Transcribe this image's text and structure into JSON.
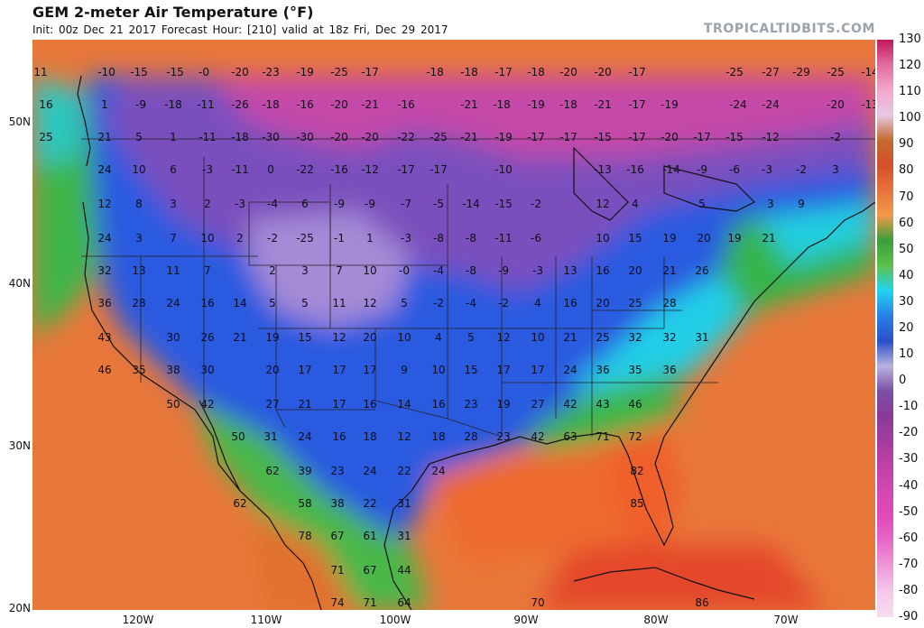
{
  "header": {
    "title": "GEM 2-meter Air Temperature (°F)",
    "subtitle": "Init: 00z Dec 21 2017   Forecast Hour: [210]   valid at 18z Fri, Dec 29 2017",
    "brand": "TROPICALTIDBITS.COM"
  },
  "axes": {
    "lat_labels": [
      "50N",
      "40N",
      "30N",
      "20N"
    ],
    "lon_labels": [
      "120W",
      "110W",
      "100W",
      "90W",
      "80W",
      "70W"
    ]
  },
  "colorbar": {
    "labels": [
      "130",
      "120",
      "110",
      "100",
      "90",
      "80",
      "70",
      "60",
      "50",
      "40",
      "30",
      "20",
      "10",
      "0",
      "-10",
      "-20",
      "-30",
      "-40",
      "-50",
      "-60",
      "-70",
      "-80",
      "-90"
    ],
    "colors": [
      "#c2185b",
      "#e16ca0",
      "#f4a6cc",
      "#e6c9e6",
      "#c46a2c",
      "#d4502a",
      "#e8733a",
      "#f09a4a",
      "#3b9e3a",
      "#5ec04a",
      "#22d4f0",
      "#2a7fe6",
      "#2a4fc8",
      "#b9b3dd",
      "#7b4fa6",
      "#8a3a96",
      "#a53c9f",
      "#c040a8",
      "#d448b4",
      "#e04ab8",
      "#e86ac8",
      "#ee9ad8",
      "#f4c8ea"
    ],
    "color_bottom": "#f7dcf0"
  },
  "map": {
    "ocean_west_warm": "#e8773a",
    "gulf_orange": "#ee6a2e",
    "atlantic_orange": "#f08a3c",
    "land_blue": "#2c5ae0",
    "cold_purple": "#7a4fbd",
    "very_cold_magenta": "#c548a8",
    "green_coast": "#3cb54a",
    "cyan": "#26cfe8"
  },
  "points": [
    {
      "t": "11"
    },
    {
      "t": "-10"
    },
    {
      "t": "-15"
    },
    {
      "t": "-15"
    },
    {
      "t": "-0"
    },
    {
      "t": "-20"
    },
    {
      "t": "-23"
    },
    {
      "t": "-19"
    },
    {
      "t": "-25"
    },
    {
      "t": "-17"
    },
    {
      "t": "-18"
    },
    {
      "t": "-18"
    },
    {
      "t": "-17"
    },
    {
      "t": "-18"
    },
    {
      "t": "-20"
    },
    {
      "t": "-20"
    },
    {
      "t": "-17"
    },
    {
      "t": "-25"
    },
    {
      "t": "-27"
    },
    {
      "t": "-29"
    },
    {
      "t": "-25"
    },
    {
      "t": "-14"
    },
    {
      "t": "16"
    },
    {
      "t": "1"
    },
    {
      "t": "-9"
    },
    {
      "t": "-18"
    },
    {
      "t": "-11"
    },
    {
      "t": "-26"
    },
    {
      "t": "-18"
    },
    {
      "t": "-16"
    },
    {
      "t": "-20"
    },
    {
      "t": "-21"
    },
    {
      "t": "-16"
    },
    {
      "t": "-21"
    },
    {
      "t": "-18"
    },
    {
      "t": "-19"
    },
    {
      "t": "-18"
    },
    {
      "t": "-21"
    },
    {
      "t": "-17"
    },
    {
      "t": "-19"
    },
    {
      "t": "-24"
    },
    {
      "t": "-24"
    },
    {
      "t": "-20"
    },
    {
      "t": "-13"
    },
    {
      "t": "25"
    },
    {
      "t": "21"
    },
    {
      "t": "5"
    },
    {
      "t": "1"
    },
    {
      "t": "-11"
    },
    {
      "t": "-18"
    },
    {
      "t": "-30"
    },
    {
      "t": "-30"
    },
    {
      "t": "-20"
    },
    {
      "t": "-20"
    },
    {
      "t": "-22"
    },
    {
      "t": "-25"
    },
    {
      "t": "-21"
    },
    {
      "t": "-19"
    },
    {
      "t": "-17"
    },
    {
      "t": "-17"
    },
    {
      "t": "-15"
    },
    {
      "t": "-17"
    },
    {
      "t": "-20"
    },
    {
      "t": "-17"
    },
    {
      "t": "-15"
    },
    {
      "t": "-12"
    },
    {
      "t": "-2"
    },
    {
      "t": "24"
    },
    {
      "t": "10"
    },
    {
      "t": "6"
    },
    {
      "t": "-3"
    },
    {
      "t": "-11"
    },
    {
      "t": "0"
    },
    {
      "t": "-22"
    },
    {
      "t": "-16"
    },
    {
      "t": "-12"
    },
    {
      "t": "-17"
    },
    {
      "t": "-17"
    },
    {
      "t": "-10"
    },
    {
      "t": "-13"
    },
    {
      "t": "-16"
    },
    {
      "t": "-14"
    },
    {
      "t": "-9"
    },
    {
      "t": "-6"
    },
    {
      "t": "-3"
    },
    {
      "t": "-2"
    },
    {
      "t": "3"
    },
    {
      "t": "12"
    },
    {
      "t": "8"
    },
    {
      "t": "3"
    },
    {
      "t": "2"
    },
    {
      "t": "-3"
    },
    {
      "t": "-4"
    },
    {
      "t": "6"
    },
    {
      "t": "-9"
    },
    {
      "t": "-9"
    },
    {
      "t": "-7"
    },
    {
      "t": "-5"
    },
    {
      "t": "-14"
    },
    {
      "t": "-15"
    },
    {
      "t": "-2"
    },
    {
      "t": "12"
    },
    {
      "t": "4"
    },
    {
      "t": "5"
    },
    {
      "t": "3"
    },
    {
      "t": "9"
    },
    {
      "t": "24"
    },
    {
      "t": "3"
    },
    {
      "t": "7"
    },
    {
      "t": "10"
    },
    {
      "t": "2"
    },
    {
      "t": "-2"
    },
    {
      "t": "-25"
    },
    {
      "t": "-1"
    },
    {
      "t": "1"
    },
    {
      "t": "-3"
    },
    {
      "t": "-8"
    },
    {
      "t": "-8"
    },
    {
      "t": "-11"
    },
    {
      "t": "-6"
    },
    {
      "t": "10"
    },
    {
      "t": "15"
    },
    {
      "t": "19"
    },
    {
      "t": "20"
    },
    {
      "t": "19"
    },
    {
      "t": "21"
    },
    {
      "t": "32"
    },
    {
      "t": "13"
    },
    {
      "t": "11"
    },
    {
      "t": "7"
    },
    {
      "t": "2"
    },
    {
      "t": "3"
    },
    {
      "t": "7"
    },
    {
      "t": "10"
    },
    {
      "t": "-0"
    },
    {
      "t": "-4"
    },
    {
      "t": "-8"
    },
    {
      "t": "-9"
    },
    {
      "t": "-3"
    },
    {
      "t": "13"
    },
    {
      "t": "16"
    },
    {
      "t": "20"
    },
    {
      "t": "21"
    },
    {
      "t": "26"
    },
    {
      "t": "36"
    },
    {
      "t": "28"
    },
    {
      "t": "24"
    },
    {
      "t": "16"
    },
    {
      "t": "14"
    },
    {
      "t": "5"
    },
    {
      "t": "5"
    },
    {
      "t": "11"
    },
    {
      "t": "12"
    },
    {
      "t": "5"
    },
    {
      "t": "-2"
    },
    {
      "t": "-4"
    },
    {
      "t": "-2"
    },
    {
      "t": "4"
    },
    {
      "t": "16"
    },
    {
      "t": "20"
    },
    {
      "t": "25"
    },
    {
      "t": "28"
    },
    {
      "t": "43"
    },
    {
      "t": "30"
    },
    {
      "t": "26"
    },
    {
      "t": "21"
    },
    {
      "t": "19"
    },
    {
      "t": "15"
    },
    {
      "t": "12"
    },
    {
      "t": "20"
    },
    {
      "t": "10"
    },
    {
      "t": "4"
    },
    {
      "t": "5"
    },
    {
      "t": "12"
    },
    {
      "t": "10"
    },
    {
      "t": "21"
    },
    {
      "t": "25"
    },
    {
      "t": "32"
    },
    {
      "t": "32"
    },
    {
      "t": "31"
    },
    {
      "t": "46"
    },
    {
      "t": "35"
    },
    {
      "t": "38"
    },
    {
      "t": "30"
    },
    {
      "t": "20"
    },
    {
      "t": "17"
    },
    {
      "t": "17"
    },
    {
      "t": "17"
    },
    {
      "t": "9"
    },
    {
      "t": "10"
    },
    {
      "t": "15"
    },
    {
      "t": "17"
    },
    {
      "t": "17"
    },
    {
      "t": "24"
    },
    {
      "t": "36"
    },
    {
      "t": "35"
    },
    {
      "t": "36"
    },
    {
      "t": "50"
    },
    {
      "t": "42"
    },
    {
      "t": "27"
    },
    {
      "t": "21"
    },
    {
      "t": "17"
    },
    {
      "t": "16"
    },
    {
      "t": "14"
    },
    {
      "t": "16"
    },
    {
      "t": "23"
    },
    {
      "t": "19"
    },
    {
      "t": "27"
    },
    {
      "t": "42"
    },
    {
      "t": "43"
    },
    {
      "t": "46"
    },
    {
      "t": "50"
    },
    {
      "t": "31"
    },
    {
      "t": "24"
    },
    {
      "t": "16"
    },
    {
      "t": "18"
    },
    {
      "t": "12"
    },
    {
      "t": "18"
    },
    {
      "t": "28"
    },
    {
      "t": "23"
    },
    {
      "t": "42"
    },
    {
      "t": "63"
    },
    {
      "t": "71"
    },
    {
      "t": "72"
    },
    {
      "t": "62"
    },
    {
      "t": "39"
    },
    {
      "t": "23"
    },
    {
      "t": "24"
    },
    {
      "t": "22"
    },
    {
      "t": "24"
    },
    {
      "t": "82"
    },
    {
      "t": "62"
    },
    {
      "t": "58"
    },
    {
      "t": "38"
    },
    {
      "t": "22"
    },
    {
      "t": "31"
    },
    {
      "t": "85"
    },
    {
      "t": "78"
    },
    {
      "t": "67"
    },
    {
      "t": "61"
    },
    {
      "t": "31"
    },
    {
      "t": "71"
    },
    {
      "t": "67"
    },
    {
      "t": "44"
    },
    {
      "t": "74"
    },
    {
      "t": "71"
    },
    {
      "t": "64"
    },
    {
      "t": "70"
    },
    {
      "t": "86"
    }
  ]
}
